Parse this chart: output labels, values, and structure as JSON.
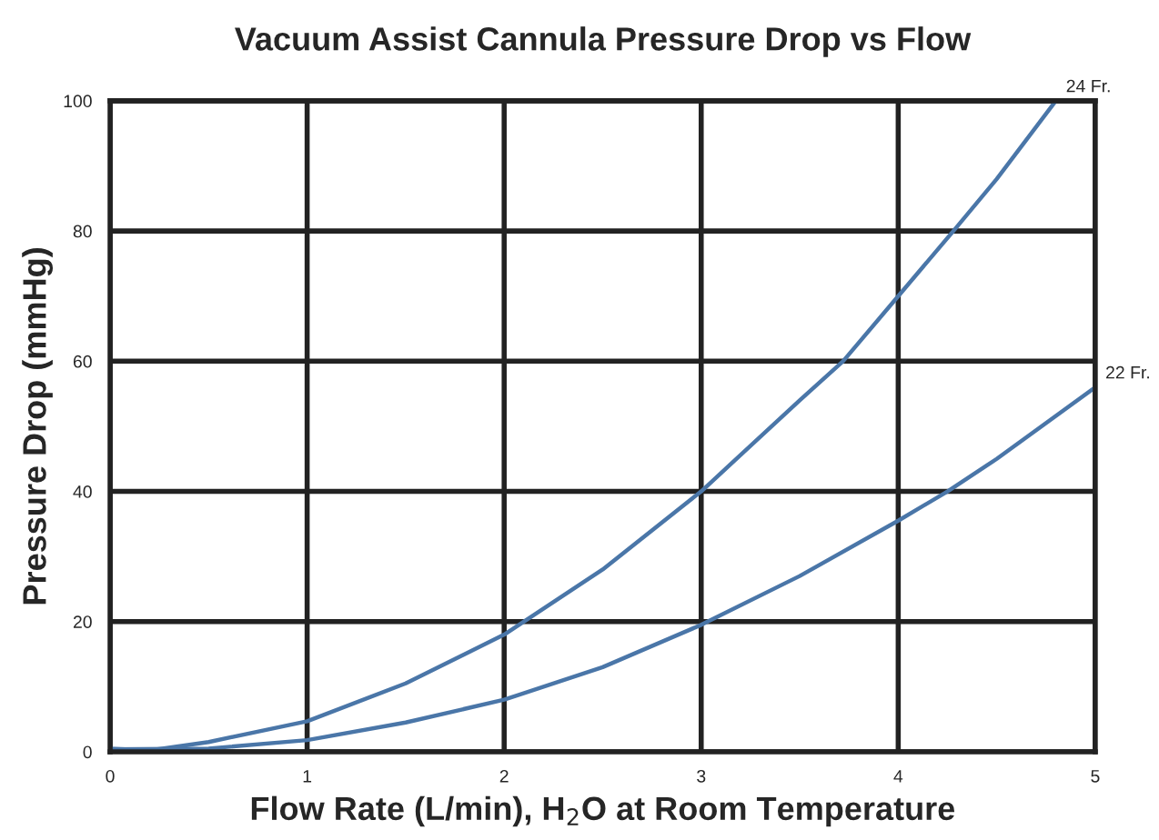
{
  "chart_data": {
    "type": "line",
    "title": "Vacuum Assist Cannula Pressure Drop vs Flow",
    "xlabel": "Flow Rate (L/min), H$_{2}$O at Room Temperature",
    "ylabel": "Pressure Drop (mmHg)",
    "series": [
      {
        "name": "24 Fr.",
        "color": "#4a76a8",
        "x": [
          0,
          0.2,
          0.5,
          1,
          1.5,
          2,
          2.5,
          3,
          3.5,
          3.72,
          4,
          4.28,
          4.5,
          4.8
        ],
        "values": [
          0.5,
          0.2,
          1.5,
          4.7,
          10.5,
          18,
          28,
          40,
          54,
          60,
          70,
          80,
          88,
          100
        ]
      },
      {
        "name": "22 Fr.",
        "color": "#4a76a8",
        "x": [
          0,
          0.5,
          1,
          1.5,
          2,
          2.5,
          3,
          3.5,
          4,
          4.25,
          4.5,
          5
        ],
        "values": [
          0.4,
          0.5,
          1.8,
          4.5,
          8,
          13,
          19.5,
          27,
          35.5,
          40,
          45,
          56
        ]
      }
    ],
    "xlim": [
      0,
      5
    ],
    "ylim": [
      0,
      100
    ],
    "xticks": [
      0,
      1,
      2,
      3,
      4,
      5
    ],
    "yticks": [
      0,
      20,
      40,
      60,
      80,
      100
    ],
    "grid": true,
    "legend": false,
    "marker": "none",
    "line_style": "solid"
  }
}
